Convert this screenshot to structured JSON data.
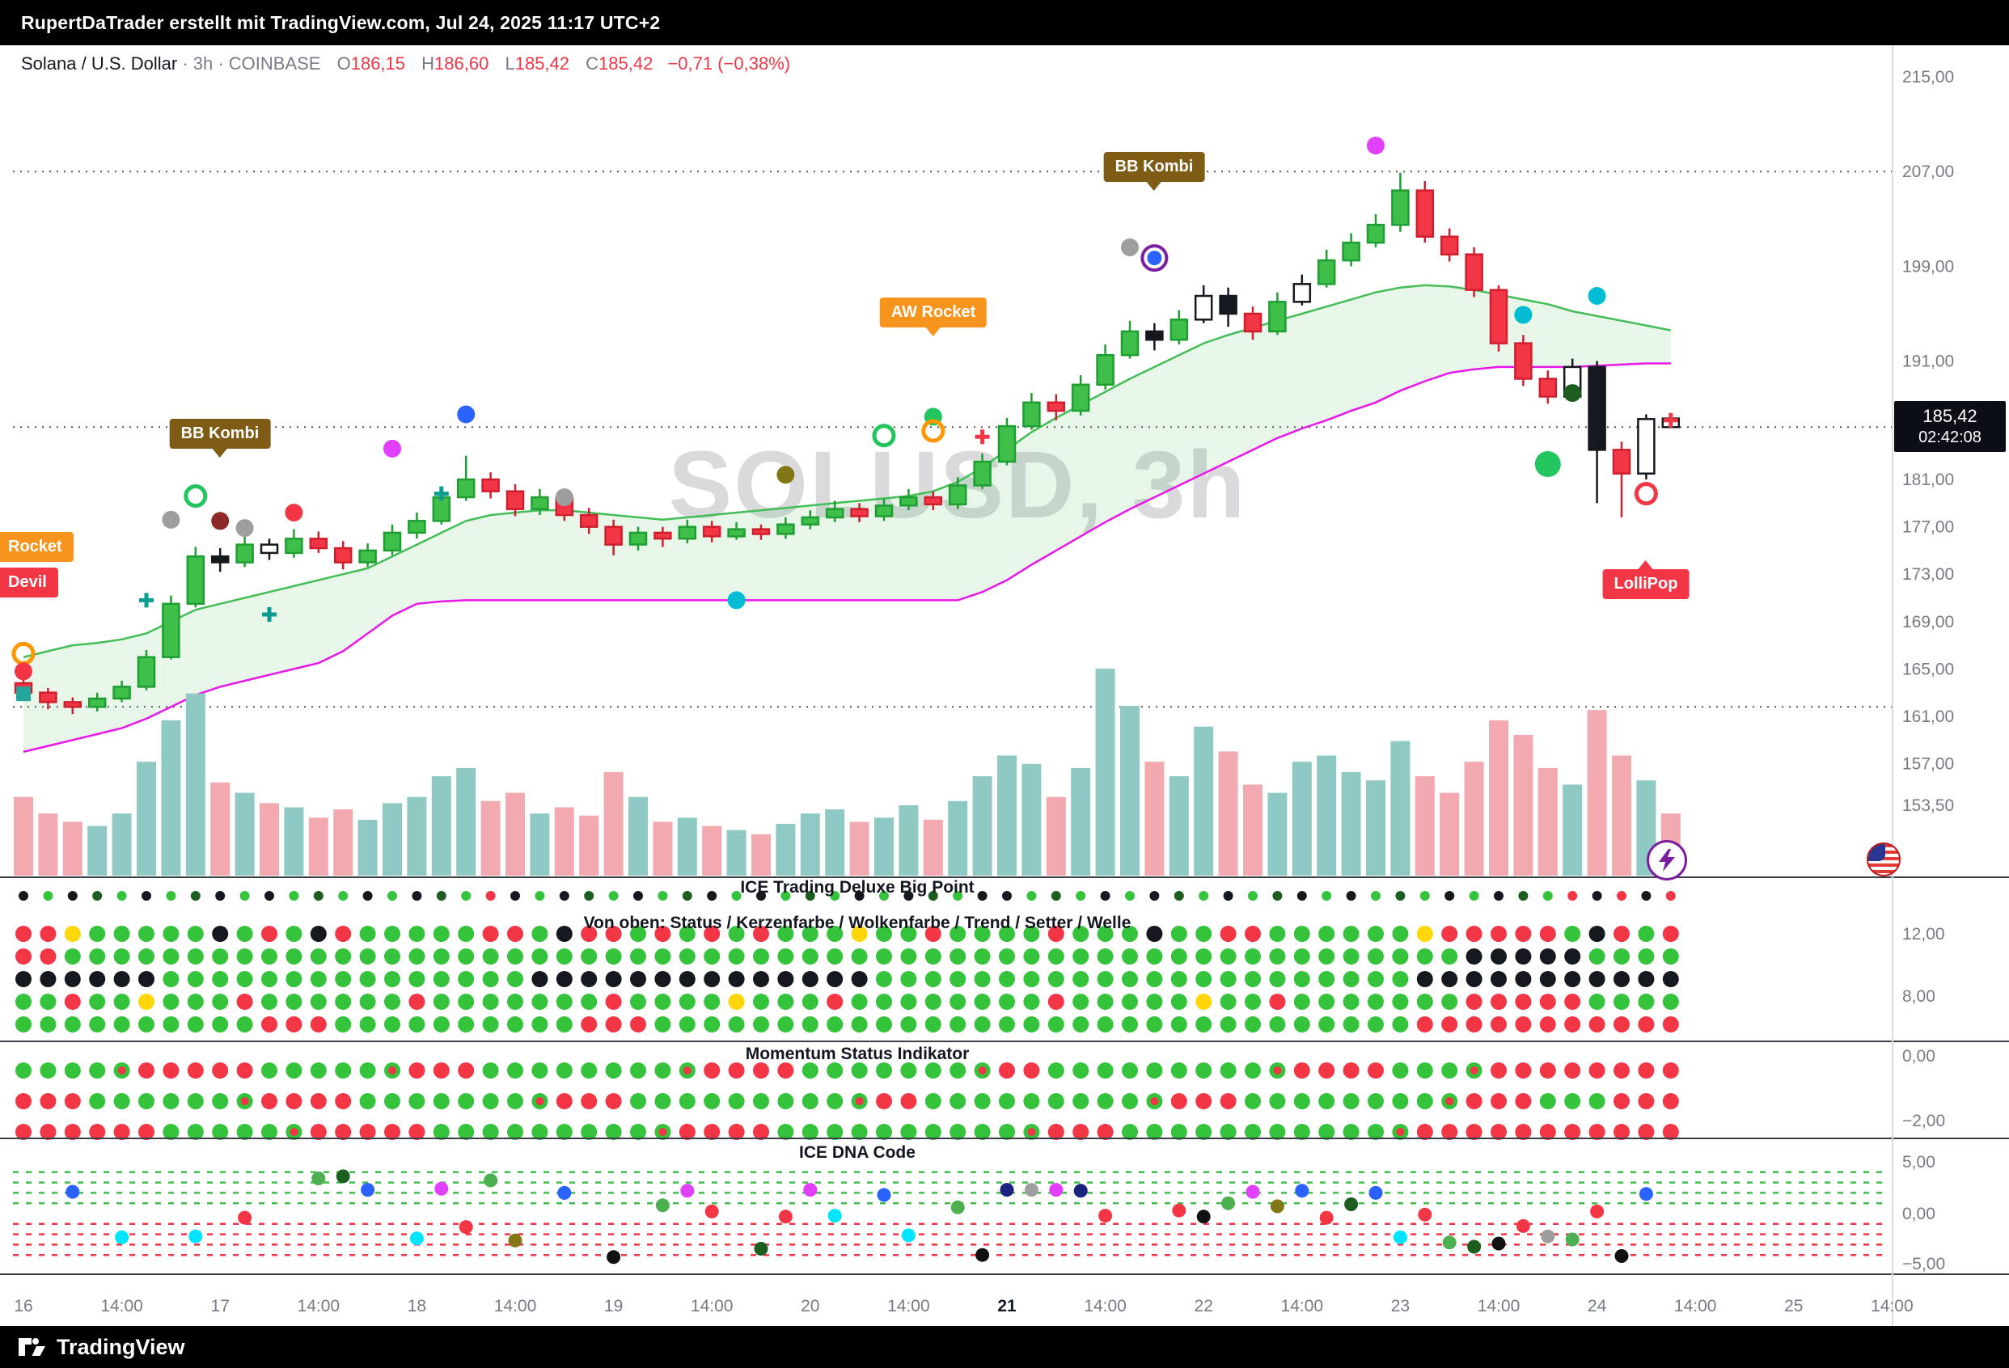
{
  "topbar": {
    "text": "RupertDaTrader erstellt mit TradingView.com, Jul 24, 2025 11:17 UTC+2"
  },
  "symbol_line": {
    "name": "Solana / U.S. Dollar",
    "meta": "· 3h · COINBASE",
    "o_label": "O",
    "o": "186,15",
    "h_label": "H",
    "h": "186,60",
    "l_label": "L",
    "l": "185,42",
    "c_label": "C",
    "c": "185,42",
    "change": "−0,71 (−0,38%)"
  },
  "watermark": "SOLUSD, 3h",
  "price_badge": {
    "price": "185,42",
    "countdown": "02:42:08"
  },
  "callouts": {
    "bb_kombi_1": "BB Kombi",
    "bb_kombi_2": "BB Kombi",
    "aw_rocket": "AW Rocket",
    "rocket": "Rocket",
    "devil": "Devil",
    "lollipop": "LolliPop"
  },
  "panels": {
    "ice": {
      "title": "ICE Trading Deluxe Big Point",
      "subtitle": "Von oben: Status / Kerzenfarbe / Wolkenfarbe / Trend / Setter / Welle",
      "axis": [
        "12,00",
        "8,00"
      ]
    },
    "momentum": {
      "title": "Momentum Status Indikator",
      "axis": [
        "0,00",
        "−2,00"
      ]
    },
    "dna": {
      "title": "ICE DNA Code",
      "axis": [
        "5,00",
        "0,00",
        "−5,00"
      ]
    }
  },
  "price_axis": {
    "labels": [
      {
        "text": "215,00",
        "value": 215
      },
      {
        "text": "207,00",
        "value": 207
      },
      {
        "text": "199,00",
        "value": 199
      },
      {
        "text": "191,00",
        "value": 191
      },
      {
        "text": "181,00",
        "value": 181
      },
      {
        "text": "177,00",
        "value": 177
      },
      {
        "text": "173,00",
        "value": 173
      },
      {
        "text": "169,00",
        "value": 169
      },
      {
        "text": "165,00",
        "value": 165
      },
      {
        "text": "161,00",
        "value": 161
      },
      {
        "text": "157,00",
        "value": 157
      },
      {
        "text": "153,50",
        "value": 153.5
      }
    ]
  },
  "time_axis": {
    "labels": [
      {
        "text": "16",
        "i": 0
      },
      {
        "text": "14:00",
        "i": 4
      },
      {
        "text": "17",
        "i": 8
      },
      {
        "text": "14:00",
        "i": 12
      },
      {
        "text": "18",
        "i": 16
      },
      {
        "text": "14:00",
        "i": 20
      },
      {
        "text": "19",
        "i": 24
      },
      {
        "text": "14:00",
        "i": 28
      },
      {
        "text": "20",
        "i": 32
      },
      {
        "text": "14:00",
        "i": 36
      },
      {
        "text": "21",
        "i": 40,
        "bold": true
      },
      {
        "text": "14:00",
        "i": 44
      },
      {
        "text": "22",
        "i": 48
      },
      {
        "text": "14:00",
        "i": 52
      },
      {
        "text": "23",
        "i": 56
      },
      {
        "text": "14:00",
        "i": 60
      },
      {
        "text": "24",
        "i": 64
      },
      {
        "text": "14:00",
        "i": 68
      },
      {
        "text": "25",
        "i": 72
      },
      {
        "text": "14:00",
        "i": 76
      }
    ]
  },
  "branding": {
    "name": "TradingView"
  },
  "chart_data": {
    "type": "candlestick",
    "symbol": "SOLUSD",
    "interval": "3h",
    "gridlines": [
      207.0,
      185.42,
      161.8
    ],
    "ohlc": [
      [
        163.8,
        164.2,
        162.4,
        163.0
      ],
      [
        163.0,
        163.4,
        161.6,
        162.2
      ],
      [
        162.2,
        162.6,
        161.2,
        161.8
      ],
      [
        161.8,
        163.0,
        161.4,
        162.5
      ],
      [
        162.5,
        164.0,
        162.2,
        163.5
      ],
      [
        163.5,
        166.6,
        163.2,
        166.0
      ],
      [
        166.0,
        171.2,
        165.8,
        170.5
      ],
      [
        170.5,
        175.3,
        170.2,
        174.5
      ],
      [
        174.5,
        175.2,
        173.2,
        174.0
      ],
      [
        174.0,
        176.2,
        173.6,
        175.5
      ],
      [
        175.5,
        176.0,
        174.2,
        174.8
      ],
      [
        174.8,
        176.8,
        174.4,
        176.0
      ],
      [
        176.0,
        176.6,
        174.8,
        175.2
      ],
      [
        175.2,
        175.8,
        173.4,
        174.0
      ],
      [
        174.0,
        175.6,
        173.6,
        175.0
      ],
      [
        175.0,
        177.2,
        174.6,
        176.5
      ],
      [
        176.5,
        178.2,
        176.0,
        177.5
      ],
      [
        177.5,
        180.4,
        177.2,
        179.5
      ],
      [
        179.5,
        183.0,
        179.2,
        181.0
      ],
      [
        181.0,
        181.6,
        179.4,
        180.0
      ],
      [
        180.0,
        180.6,
        177.9,
        178.5
      ],
      [
        178.5,
        180.2,
        178.0,
        179.5
      ],
      [
        179.5,
        180.0,
        177.5,
        178.0
      ],
      [
        178.0,
        178.6,
        176.4,
        177.0
      ],
      [
        177.0,
        177.6,
        174.6,
        175.5
      ],
      [
        175.5,
        177.0,
        175.0,
        176.5
      ],
      [
        176.5,
        177.0,
        175.3,
        176.0
      ],
      [
        176.0,
        177.6,
        175.6,
        177.0
      ],
      [
        177.0,
        177.5,
        175.7,
        176.2
      ],
      [
        176.2,
        177.4,
        175.9,
        176.8
      ],
      [
        176.8,
        177.2,
        175.9,
        176.4
      ],
      [
        176.4,
        177.8,
        176.0,
        177.2
      ],
      [
        177.2,
        178.4,
        176.8,
        177.8
      ],
      [
        177.8,
        179.2,
        177.4,
        178.5
      ],
      [
        178.5,
        179.0,
        177.4,
        177.9
      ],
      [
        177.9,
        179.4,
        177.5,
        178.8
      ],
      [
        178.8,
        180.2,
        178.4,
        179.5
      ],
      [
        179.5,
        180.0,
        178.4,
        178.9
      ],
      [
        178.9,
        181.2,
        178.5,
        180.5
      ],
      [
        180.5,
        183.2,
        180.2,
        182.5
      ],
      [
        182.5,
        186.2,
        182.2,
        185.5
      ],
      [
        185.5,
        188.3,
        185.2,
        187.5
      ],
      [
        187.5,
        188.2,
        186.0,
        186.8
      ],
      [
        186.8,
        189.8,
        186.4,
        189.0
      ],
      [
        189.0,
        192.4,
        188.6,
        191.5
      ],
      [
        191.5,
        194.4,
        191.2,
        193.5
      ],
      [
        193.5,
        194.2,
        191.9,
        192.8
      ],
      [
        192.8,
        195.3,
        192.4,
        194.5
      ],
      [
        194.5,
        197.4,
        194.2,
        196.5
      ],
      [
        196.5,
        197.2,
        193.9,
        195.0
      ],
      [
        195.0,
        195.6,
        192.8,
        193.5
      ],
      [
        193.5,
        196.8,
        193.2,
        196.0
      ],
      [
        196.0,
        198.3,
        195.7,
        197.5
      ],
      [
        197.5,
        200.4,
        197.2,
        199.5
      ],
      [
        199.5,
        201.8,
        199.0,
        201.0
      ],
      [
        201.0,
        203.4,
        200.6,
        202.5
      ],
      [
        202.5,
        206.9,
        201.9,
        205.4
      ],
      [
        205.4,
        206.2,
        201.0,
        201.5
      ],
      [
        201.5,
        202.2,
        199.4,
        200.0
      ],
      [
        200.0,
        200.6,
        196.4,
        197.0
      ],
      [
        197.0,
        197.4,
        191.8,
        192.5
      ],
      [
        192.5,
        193.2,
        188.9,
        189.5
      ],
      [
        189.5,
        190.2,
        187.4,
        188.0
      ],
      [
        188.0,
        191.2,
        187.6,
        190.5
      ],
      [
        190.5,
        191.0,
        179.0,
        183.5
      ],
      [
        183.5,
        184.2,
        177.8,
        181.5
      ],
      [
        181.5,
        186.5,
        181.0,
        186.1
      ],
      [
        186.15,
        186.6,
        185.42,
        185.42
      ]
    ],
    "candle_styles": "rrrgggggkgwgrrgggggrrgrrrgrgrgrgggrggrggggrgggkgwkrgwggggrrrrrrwkrww",
    "volume": [
      38,
      30,
      26,
      24,
      30,
      55,
      75,
      88,
      45,
      40,
      35,
      33,
      28,
      32,
      27,
      35,
      38,
      48,
      52,
      36,
      40,
      30,
      33,
      29,
      50,
      38,
      26,
      28,
      24,
      22,
      20,
      25,
      30,
      32,
      26,
      28,
      34,
      27,
      36,
      48,
      58,
      54,
      38,
      52,
      100,
      82,
      55,
      48,
      72,
      60,
      44,
      40,
      55,
      58,
      50,
      46,
      65,
      48,
      40,
      55,
      75,
      68,
      52,
      44,
      80,
      58,
      46,
      30
    ],
    "cloud": {
      "upper": [
        166.0,
        166.5,
        167.0,
        167.2,
        167.5,
        168.0,
        169.0,
        170.0,
        170.5,
        171.0,
        171.5,
        172.0,
        172.5,
        173.0,
        173.5,
        174.5,
        175.5,
        176.5,
        177.5,
        178.0,
        178.2,
        178.4,
        178.4,
        178.2,
        178.0,
        177.8,
        177.6,
        177.8,
        178.0,
        178.2,
        178.4,
        178.6,
        178.8,
        179.0,
        179.2,
        179.4,
        179.6,
        180.0,
        180.8,
        182.0,
        183.5,
        185.0,
        186.2,
        187.3,
        188.4,
        189.5,
        190.5,
        191.5,
        192.5,
        193.2,
        193.8,
        194.4,
        195.0,
        195.6,
        196.2,
        196.8,
        197.2,
        197.4,
        197.3,
        197.0,
        196.6,
        196.2,
        195.8,
        195.2,
        194.8,
        194.4,
        194.0,
        193.6
      ],
      "lower": [
        158.0,
        158.5,
        159.0,
        159.5,
        160.0,
        160.8,
        161.8,
        162.8,
        163.5,
        164.0,
        164.5,
        165.0,
        165.5,
        166.5,
        168.0,
        169.5,
        170.5,
        170.7,
        170.8,
        170.8,
        170.8,
        170.8,
        170.8,
        170.8,
        170.8,
        170.8,
        170.8,
        170.8,
        170.8,
        170.8,
        170.8,
        170.8,
        170.8,
        170.8,
        170.8,
        170.8,
        170.8,
        170.8,
        170.8,
        171.5,
        172.5,
        173.8,
        175.0,
        176.2,
        177.4,
        178.5,
        179.5,
        180.5,
        181.5,
        182.5,
        183.5,
        184.5,
        185.3,
        186.0,
        186.8,
        187.5,
        188.5,
        189.3,
        190.0,
        190.3,
        190.5,
        190.5,
        190.5,
        190.5,
        190.6,
        190.7,
        190.8,
        190.8
      ]
    },
    "markers": [
      [
        0,
        166.3,
        "ring",
        "#ff9800"
      ],
      [
        0,
        164.8,
        "dot",
        "#f23645"
      ],
      [
        0,
        162.9,
        "square",
        "#26a69a"
      ],
      [
        5,
        170.8,
        "cross",
        "#0a9c8e"
      ],
      [
        6,
        177.6,
        "dot",
        "#9e9e9e"
      ],
      [
        7,
        179.6,
        "ring",
        "#22c55e"
      ],
      [
        8,
        177.5,
        "dot",
        "#8d2828"
      ],
      [
        9,
        176.9,
        "dot",
        "#9e9e9e"
      ],
      [
        10,
        169.6,
        "cross",
        "#0a9c8e"
      ],
      [
        11,
        178.2,
        "dot",
        "#f23645"
      ],
      [
        15,
        183.6,
        "dot",
        "#e040fb"
      ],
      [
        17,
        179.8,
        "cross",
        "#0a9c8e"
      ],
      [
        18,
        186.5,
        "dot",
        "#2962ff"
      ],
      [
        22,
        179.5,
        "dot",
        "#9e9e9e"
      ],
      [
        29,
        170.8,
        "dot",
        "#00bcd4"
      ],
      [
        31,
        181.4,
        "dot",
        "#827717"
      ],
      [
        35,
        184.7,
        "ring",
        "#22c55e"
      ],
      [
        37,
        186.3,
        "dot",
        "#22c55e"
      ],
      [
        37,
        185.1,
        "ring",
        "#ff9800"
      ],
      [
        39,
        184.6,
        "cross",
        "#f23645"
      ],
      [
        45,
        200.6,
        "dot",
        "#9e9e9e"
      ],
      [
        46,
        199.7,
        "target",
        "#2962ff"
      ],
      [
        55,
        209.2,
        "dot",
        "#e040fb"
      ],
      [
        61,
        194.9,
        "dot",
        "#00bcd4"
      ],
      [
        63,
        188.3,
        "dot",
        "#1b5e20"
      ],
      [
        62,
        182.3,
        "bigdot",
        "#22c55e"
      ],
      [
        64,
        196.5,
        "dot",
        "#00bcd4"
      ],
      [
        66,
        179.8,
        "ring",
        "#f23645"
      ],
      [
        67,
        186.0,
        "cross",
        "#f23645"
      ]
    ],
    "dot_panels": {
      "ice": [
        "kgkGgkgGkgkgGgkgkGgrkgkGgkgGkgkgGgkgkGgkkgGgkgkGgkgGkgkgGgkgkGgrkrkr",
        "rrygggggkgrgkrgggggrrgkrrgrgrgrgggyggrggggrgggkggrrggggggyrrrrrgkrgr",
        "rrgggggggggggggggggggggggggggggggggggggggggggggggggggggggggkkkkkgggg",
        "kkkkkkgggggggggggggggkkkkkkkkkkkkkkggggggggggggggggggggggkkkkkkkkkkk",
        "ggrggygggrggggggrgggggggrggggygggrggggggggrgggggyggrgggggggrrrrrgggg",
        "ggggggggggrrrggggggggggrrrgggggggggggggggggggggggggggggggrrrrrrrrrrr"
      ],
      "momentum": [
        "ggggxrrrrrgggggxrrrggggggggxrrrrgggggggxrrgggggggggxrrrrgggxrrrrrrrr",
        "rrrggggggxrrrrgggggggxrrrgggggggggxrrgggggggggxrrrggggggggxrrrgggrrr",
        "rrrrrrgggggxrrrrrgggggggggxrrrrggggggggggxrrrgggggggggggxrrrrrrrrrrr"
      ]
    },
    "dna": {
      "green_lines": [
        4,
        3,
        2,
        1
      ],
      "red_lines": [
        -1,
        -2,
        -3,
        -4
      ],
      "dots": [
        [
          2,
          2.1,
          "#2962ff"
        ],
        [
          4,
          -2.3,
          "#00e5ff"
        ],
        [
          7,
          -2.2,
          "#00e5ff"
        ],
        [
          9,
          -0.4,
          "#f23645"
        ],
        [
          12,
          3.4,
          "#4caf50"
        ],
        [
          13,
          3.6,
          "#1b5e20"
        ],
        [
          14,
          2.3,
          "#2962ff"
        ],
        [
          16,
          -2.4,
          "#00e5ff"
        ],
        [
          17,
          2.4,
          "#e040fb"
        ],
        [
          18,
          -1.3,
          "#f23645"
        ],
        [
          19,
          3.2,
          "#4caf50"
        ],
        [
          20,
          -2.6,
          "#827717"
        ],
        [
          22,
          2.0,
          "#2962ff"
        ],
        [
          24,
          -4.2,
          "#111111"
        ],
        [
          26,
          0.8,
          "#4caf50"
        ],
        [
          27,
          2.2,
          "#e040fb"
        ],
        [
          28,
          0.2,
          "#f23645"
        ],
        [
          30,
          -3.4,
          "#1b5e20"
        ],
        [
          31,
          -0.3,
          "#f23645"
        ],
        [
          32,
          2.3,
          "#e040fb"
        ],
        [
          33,
          -0.2,
          "#00e5ff"
        ],
        [
          35,
          1.8,
          "#2962ff"
        ],
        [
          36,
          -2.1,
          "#00e5ff"
        ],
        [
          38,
          0.6,
          "#4caf50"
        ],
        [
          39,
          -4.0,
          "#111111"
        ],
        [
          40,
          2.3,
          "#1a237e"
        ],
        [
          41,
          2.3,
          "#9e9e9e"
        ],
        [
          42,
          2.3,
          "#e040fb"
        ],
        [
          43,
          2.2,
          "#1a237e"
        ],
        [
          44,
          -0.2,
          "#f23645"
        ],
        [
          47,
          0.3,
          "#f23645"
        ],
        [
          48,
          -0.3,
          "#111111"
        ],
        [
          49,
          1.0,
          "#4caf50"
        ],
        [
          50,
          2.1,
          "#e040fb"
        ],
        [
          51,
          0.7,
          "#827717"
        ],
        [
          52,
          2.2,
          "#2962ff"
        ],
        [
          53,
          -0.4,
          "#f23645"
        ],
        [
          54,
          0.9,
          "#1b5e20"
        ],
        [
          55,
          2.0,
          "#2962ff"
        ],
        [
          56,
          -2.3,
          "#00e5ff"
        ],
        [
          57,
          -0.1,
          "#f23645"
        ],
        [
          58,
          -2.8,
          "#4caf50"
        ],
        [
          59,
          -3.2,
          "#1b5e20"
        ],
        [
          60,
          -2.9,
          "#111111"
        ],
        [
          61,
          -1.2,
          "#f23645"
        ],
        [
          62,
          -2.2,
          "#9e9e9e"
        ],
        [
          63,
          -2.5,
          "#4caf50"
        ],
        [
          64,
          0.2,
          "#f23645"
        ],
        [
          65,
          -4.1,
          "#111111"
        ],
        [
          66,
          1.9,
          "#2962ff"
        ]
      ]
    }
  }
}
